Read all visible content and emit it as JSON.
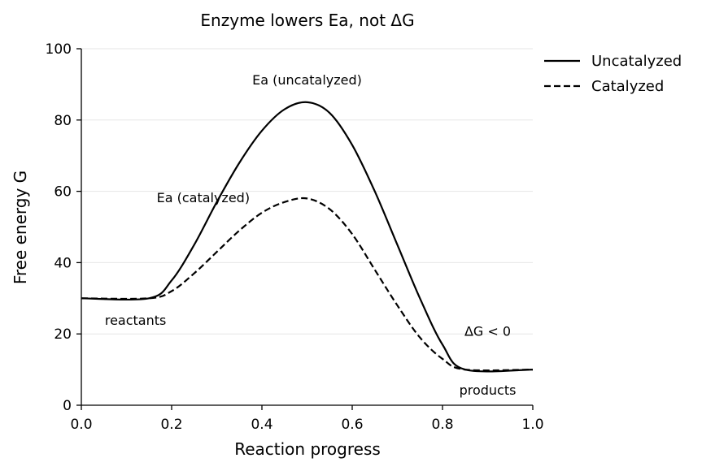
{
  "chart_data": {
    "type": "line",
    "title": "Enzyme lowers Ea, not ΔG",
    "xlabel": "Reaction progress",
    "ylabel": "Free energy G",
    "xlim": [
      0.0,
      1.0
    ],
    "ylim": [
      0,
      100
    ],
    "xticks": [
      "0.0",
      "0.2",
      "0.4",
      "0.6",
      "0.8",
      "1.0"
    ],
    "yticks": [
      "0",
      "20",
      "40",
      "60",
      "80",
      "100"
    ],
    "grid": "horizontal",
    "legend_position": "outside top-right",
    "series": [
      {
        "name": "Uncatalyzed",
        "style": "solid",
        "color": "#000000",
        "x": [
          0.0,
          0.15,
          0.2,
          0.25,
          0.3,
          0.35,
          0.4,
          0.45,
          0.5,
          0.55,
          0.6,
          0.65,
          0.7,
          0.75,
          0.8,
          0.85,
          1.0
        ],
        "y": [
          30,
          30,
          35,
          45,
          57,
          68,
          77,
          83,
          85,
          82,
          73,
          60,
          45,
          30,
          17,
          10,
          10
        ]
      },
      {
        "name": "Catalyzed",
        "style": "dashed",
        "color": "#000000",
        "x": [
          0.0,
          0.15,
          0.2,
          0.25,
          0.3,
          0.35,
          0.4,
          0.45,
          0.5,
          0.55,
          0.6,
          0.65,
          0.7,
          0.75,
          0.8,
          0.85,
          1.0
        ],
        "y": [
          30,
          30,
          32,
          37,
          43,
          49,
          54,
          57,
          58,
          55,
          48,
          38,
          28,
          19,
          13,
          10,
          10
        ]
      }
    ],
    "annotations": [
      {
        "text": "Ea (uncatalyzed)",
        "x": 0.5,
        "y": 90
      },
      {
        "text": "Ea (catalyzed)",
        "x": 0.27,
        "y": 57
      },
      {
        "text": "reactants",
        "x": 0.12,
        "y": 22.5
      },
      {
        "text": "ΔG < 0",
        "x": 0.9,
        "y": 19.5
      },
      {
        "text": "products",
        "x": 0.9,
        "y": 3
      }
    ]
  }
}
